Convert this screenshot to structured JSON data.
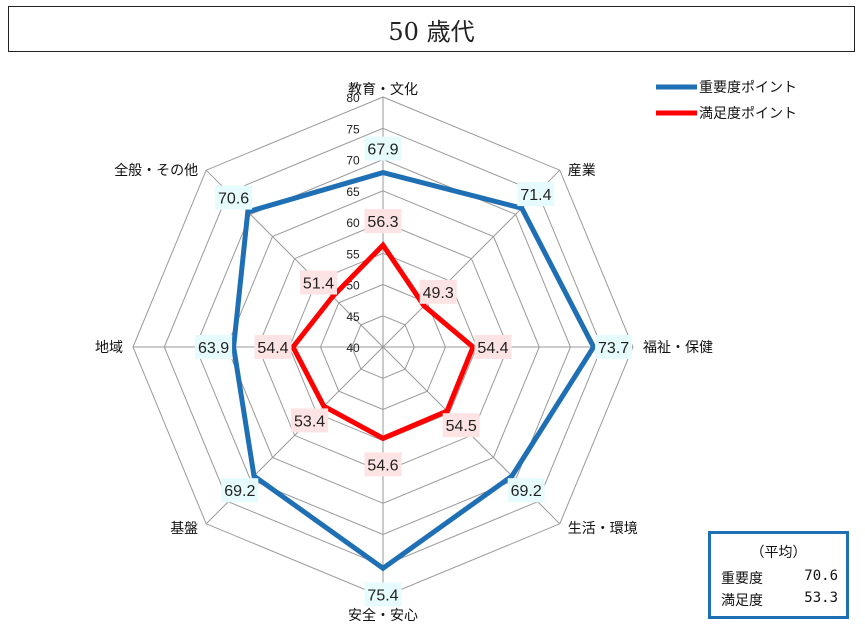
{
  "title": "50 歳代",
  "chart_data": {
    "type": "radar",
    "categories": [
      "教育・文化",
      "産業",
      "福祉・保健",
      "生活・環境",
      "安全・安心",
      "基盤",
      "地域",
      "全般・その他"
    ],
    "rmin": 40,
    "rmax": 80,
    "ticks": [
      40,
      45,
      50,
      55,
      60,
      65,
      70,
      75,
      80
    ],
    "grid": true,
    "legend_position": "top-right",
    "series": [
      {
        "name": "重要度ポイント",
        "color": "#1f6fb5",
        "label_bg": "#e6fbfd",
        "values": [
          67.9,
          71.4,
          73.7,
          69.2,
          75.4,
          69.2,
          63.9,
          70.6
        ]
      },
      {
        "name": "満足度ポイント",
        "color": "#ff0000",
        "label_bg": "#fde3e3",
        "values": [
          56.3,
          49.3,
          54.4,
          54.5,
          54.6,
          53.4,
          54.4,
          51.4
        ]
      }
    ]
  },
  "average_box": {
    "title": "（平均）",
    "rows": [
      {
        "label": "重要度",
        "value": "70.6"
      },
      {
        "label": "満足度",
        "value": "53.3"
      }
    ]
  }
}
